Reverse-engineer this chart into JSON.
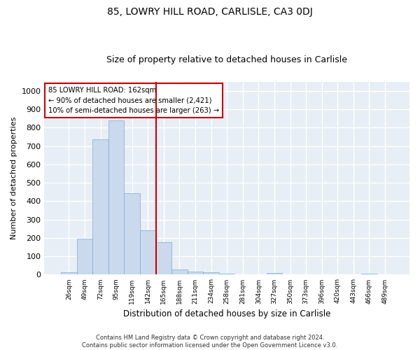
{
  "title": "85, LOWRY HILL ROAD, CARLISLE, CA3 0DJ",
  "subtitle": "Size of property relative to detached houses in Carlisle",
  "xlabel": "Distribution of detached houses by size in Carlisle",
  "ylabel": "Number of detached properties",
  "bar_color": "#cad9ec",
  "bar_edge_color": "#7aadd4",
  "categories": [
    "26sqm",
    "49sqm",
    "72sqm",
    "95sqm",
    "119sqm",
    "142sqm",
    "165sqm",
    "188sqm",
    "211sqm",
    "234sqm",
    "258sqm",
    "281sqm",
    "304sqm",
    "327sqm",
    "350sqm",
    "373sqm",
    "396sqm",
    "420sqm",
    "443sqm",
    "466sqm",
    "489sqm"
  ],
  "values": [
    12,
    195,
    735,
    840,
    445,
    240,
    178,
    30,
    18,
    13,
    5,
    0,
    0,
    8,
    0,
    0,
    0,
    0,
    0,
    5,
    0
  ],
  "ylim": [
    0,
    1050
  ],
  "yticks": [
    0,
    100,
    200,
    300,
    400,
    500,
    600,
    700,
    800,
    900,
    1000
  ],
  "property_line_x": 6.0,
  "annotation_title": "85 LOWRY HILL ROAD: 162sqm",
  "annotation_line1": "← 90% of detached houses are smaller (2,421)",
  "annotation_line2": "10% of semi-detached houses are larger (263) →",
  "footer_line1": "Contains HM Land Registry data © Crown copyright and database right 2024.",
  "footer_line2": "Contains public sector information licensed under the Open Government Licence v3.0.",
  "background_color": "#e8eef5",
  "grid_color": "#ffffff",
  "title_fontsize": 10,
  "subtitle_fontsize": 9,
  "ylabel_fontsize": 8,
  "xlabel_fontsize": 8.5
}
